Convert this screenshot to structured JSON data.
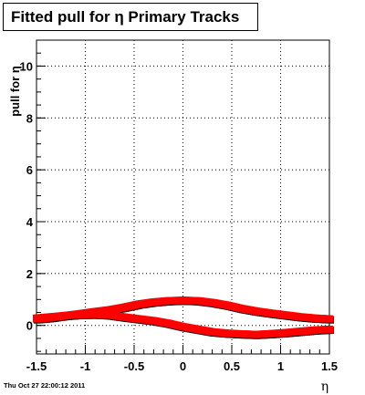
{
  "chart_data": {
    "type": "scatter",
    "title": "Fitted pull for η  Primary Tracks",
    "xlabel": "η",
    "ylabel": "pull for η",
    "xlim": [
      -1.5,
      1.5
    ],
    "ylim": [
      -1.1,
      11.0
    ],
    "x_ticks": [
      -1.5,
      -1,
      -0.5,
      0,
      0.5,
      1,
      1.5
    ],
    "x_tick_labels": [
      "-1.5",
      "-1",
      "-0.5",
      "0",
      "0.5",
      "1",
      "1.5"
    ],
    "y_ticks": [
      0,
      2,
      4,
      6,
      8,
      10
    ],
    "y_tick_labels": [
      "0",
      "2",
      "4",
      "6",
      "8",
      "10"
    ],
    "grid": true,
    "marker_color": "#ff0000",
    "shadow_color": "#000000",
    "series": [
      {
        "x": [
          -1.5,
          -1.35,
          -1.2,
          -1.05,
          -0.9,
          -0.75,
          -0.6,
          -0.45,
          -0.3,
          -0.15,
          0.0,
          0.15,
          0.3,
          0.45,
          0.6,
          0.75,
          0.9,
          1.05,
          1.2,
          1.35,
          1.5
        ],
        "y": [
          0.25,
          0.3,
          0.38,
          0.45,
          0.53,
          0.6,
          0.7,
          0.82,
          0.9,
          0.95,
          0.97,
          0.95,
          0.88,
          0.78,
          0.65,
          0.55,
          0.47,
          0.4,
          0.33,
          0.28,
          0.25
        ]
      },
      {
        "x": [
          -1.5,
          -1.35,
          -1.2,
          -1.05,
          -0.9,
          -0.75,
          -0.6,
          -0.45,
          -0.3,
          -0.15,
          0.0,
          0.15,
          0.3,
          0.45,
          0.6,
          0.75,
          0.9,
          1.05,
          1.2,
          1.35,
          1.5
        ],
        "y": [
          0.28,
          0.33,
          0.38,
          0.42,
          0.43,
          0.4,
          0.32,
          0.25,
          0.18,
          0.08,
          -0.05,
          -0.15,
          -0.25,
          -0.3,
          -0.33,
          -0.35,
          -0.32,
          -0.28,
          -0.23,
          -0.18,
          -0.15
        ]
      }
    ]
  },
  "footer": {
    "date": "Thu Oct 27 22:00:12 2011"
  }
}
